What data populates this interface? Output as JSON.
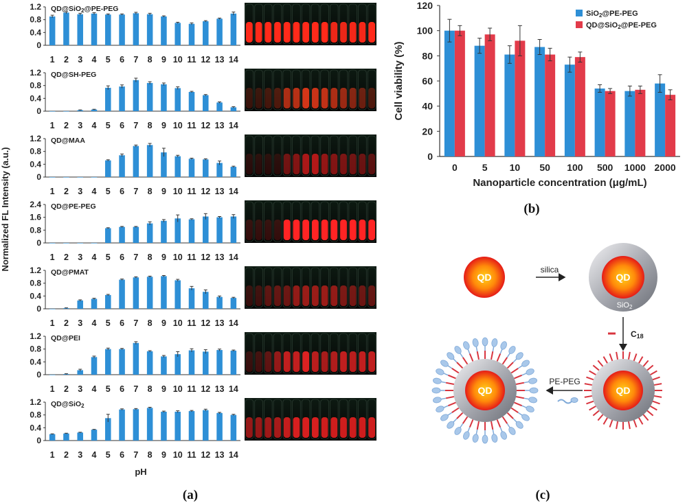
{
  "colors": {
    "blue": "#2e8fd6",
    "red": "#e23b4a",
    "qd_core": "#f5a40a",
    "silica": "#9ea1a8",
    "c18": "#d8343e",
    "peg": "#a9c8ea"
  },
  "panel_labels": {
    "a": "(a)",
    "b": "(b)",
    "c": "(c)"
  },
  "panel_a": {
    "ylabel": "Normalized FL Intensity (a.u.)",
    "xlabel": "pH",
    "categories": [
      "1",
      "2",
      "3",
      "4",
      "5",
      "6",
      "7",
      "8",
      "9",
      "10",
      "11",
      "12",
      "13",
      "14"
    ]
  },
  "chart_data": [
    {
      "type": "bar",
      "title_parts": [
        "QD@SiO",
        "2",
        "@PE-PEG"
      ],
      "ylim": [
        0,
        1.2
      ],
      "yticks": [
        "0",
        "0.4",
        "0.8",
        "1.2"
      ],
      "categories": [
        "1",
        "2",
        "3",
        "4",
        "5",
        "6",
        "7",
        "8",
        "9",
        "10",
        "11",
        "12",
        "13",
        "14"
      ],
      "values": [
        0.9,
        1.02,
        0.97,
        0.99,
        0.96,
        0.96,
        1.0,
        0.97,
        0.9,
        0.7,
        0.67,
        0.75,
        0.83,
        0.99
      ],
      "errors": [
        0.04,
        0.03,
        0.03,
        0.03,
        0.02,
        0.02,
        0.03,
        0.03,
        0.02,
        0.02,
        0.03,
        0.02,
        0.02,
        0.05
      ],
      "photo": {
        "tint": "#ff2a1a",
        "strength": [
          1,
          1,
          1,
          1,
          1,
          1,
          1,
          1,
          1,
          0.9,
          0.9,
          0.95,
          0.95,
          1
        ]
      }
    },
    {
      "type": "bar",
      "title_parts": [
        "QD@SH-PEG"
      ],
      "ylim": [
        0,
        1.2
      ],
      "yticks": [
        "0",
        "0.4",
        "0.8",
        "1.2"
      ],
      "categories": [
        "1",
        "2",
        "3",
        "4",
        "5",
        "6",
        "7",
        "8",
        "9",
        "10",
        "11",
        "12",
        "13",
        "14"
      ],
      "values": [
        0.0,
        0.0,
        0.03,
        0.05,
        0.73,
        0.77,
        0.97,
        0.88,
        0.84,
        0.72,
        0.6,
        0.5,
        0.27,
        0.12
      ],
      "errors": [
        0,
        0,
        0.01,
        0.01,
        0.06,
        0.05,
        0.06,
        0.04,
        0.04,
        0.04,
        0.02,
        0.02,
        0.02,
        0.02
      ],
      "photo": {
        "tint": "#e63a1a",
        "strength": [
          0.1,
          0.1,
          0.15,
          0.2,
          0.7,
          0.75,
          0.9,
          0.85,
          0.8,
          0.7,
          0.6,
          0.5,
          0.35,
          0.2
        ]
      }
    },
    {
      "type": "bar",
      "title_parts": [
        "QD@MAA"
      ],
      "ylim": [
        0,
        1.2
      ],
      "yticks": [
        "0",
        "0.4",
        "0.8",
        "1.2"
      ],
      "categories": [
        "1",
        "2",
        "3",
        "4",
        "5",
        "6",
        "7",
        "8",
        "9",
        "10",
        "11",
        "12",
        "13",
        "14"
      ],
      "values": [
        0.0,
        0.0,
        0.0,
        0.0,
        0.52,
        0.68,
        0.97,
        1.0,
        0.77,
        0.65,
        0.57,
        0.55,
        0.44,
        0.32
      ],
      "errors": [
        0,
        0,
        0,
        0,
        0.02,
        0.04,
        0.03,
        0.05,
        0.13,
        0.03,
        0.02,
        0.02,
        0.06,
        0.02
      ],
      "photo": {
        "tint": "#c21a1a",
        "strength": [
          0.05,
          0.05,
          0.05,
          0.05,
          0.5,
          0.6,
          0.85,
          0.9,
          0.7,
          0.6,
          0.55,
          0.5,
          0.45,
          0.35
        ]
      }
    },
    {
      "type": "bar",
      "title_parts": [
        "QD@PE-PEG"
      ],
      "ylim": [
        0,
        2.4
      ],
      "yticks": [
        "0",
        "0.8",
        "1.6",
        "2.4"
      ],
      "categories": [
        "1",
        "2",
        "3",
        "4",
        "5",
        "6",
        "7",
        "8",
        "9",
        "10",
        "11",
        "12",
        "13",
        "14"
      ],
      "values": [
        0.0,
        0.0,
        0.0,
        0.0,
        0.92,
        1.0,
        1.0,
        1.22,
        1.38,
        1.53,
        1.47,
        1.65,
        1.6,
        1.65
      ],
      "errors": [
        0,
        0,
        0,
        0,
        0.03,
        0.03,
        0.03,
        0.1,
        0.08,
        0.22,
        0.04,
        0.18,
        0.05,
        0.12
      ],
      "photo": {
        "tint": "#ff2424",
        "strength": [
          0.05,
          0.05,
          0.05,
          0.05,
          1,
          1,
          1,
          1,
          1,
          1,
          1,
          1,
          1,
          1
        ]
      }
    },
    {
      "type": "bar",
      "title_parts": [
        "QD@PMAT"
      ],
      "ylim": [
        0,
        1.2
      ],
      "yticks": [
        "0",
        "0.4",
        "0.8",
        "1.2"
      ],
      "categories": [
        "1",
        "2",
        "3",
        "4",
        "5",
        "6",
        "7",
        "8",
        "9",
        "10",
        "11",
        "12",
        "13",
        "14"
      ],
      "values": [
        0.0,
        0.02,
        0.26,
        0.31,
        0.43,
        0.91,
        0.98,
        1.0,
        1.02,
        0.89,
        0.64,
        0.53,
        0.37,
        0.34
      ],
      "errors": [
        0,
        0.01,
        0.02,
        0.02,
        0.02,
        0.02,
        0.02,
        0.02,
        0.02,
        0.03,
        0.06,
        0.06,
        0.03,
        0.02
      ],
      "photo": {
        "tint": "#b8201c",
        "strength": [
          0.15,
          0.2,
          0.4,
          0.45,
          0.5,
          0.75,
          0.8,
          0.8,
          0.8,
          0.75,
          0.6,
          0.55,
          0.5,
          0.45
        ]
      }
    },
    {
      "type": "bar",
      "title_parts": [
        "QD@PEI"
      ],
      "ylim": [
        0,
        1.2
      ],
      "yticks": [
        "0",
        "0.4",
        "0.8",
        "1.2"
      ],
      "categories": [
        "1",
        "2",
        "3",
        "4",
        "5",
        "6",
        "7",
        "8",
        "9",
        "10",
        "11",
        "12",
        "13",
        "14"
      ],
      "values": [
        0.0,
        0.02,
        0.14,
        0.55,
        0.8,
        0.8,
        0.99,
        0.73,
        0.57,
        0.64,
        0.76,
        0.72,
        0.77,
        0.75
      ],
      "errors": [
        0,
        0.01,
        0.03,
        0.03,
        0.03,
        0.02,
        0.04,
        0.02,
        0.03,
        0.08,
        0.05,
        0.06,
        0.03,
        0.02
      ],
      "photo": {
        "tint": "#dd2222",
        "strength": [
          0.1,
          0.15,
          0.3,
          0.6,
          0.85,
          0.85,
          1,
          0.8,
          0.7,
          0.75,
          0.85,
          0.8,
          0.85,
          0.85
        ]
      }
    },
    {
      "type": "bar",
      "title_parts": [
        "QD@SiO",
        "2",
        ""
      ],
      "ylim": [
        0,
        1.2
      ],
      "yticks": [
        "0",
        "0.4",
        "0.8",
        "1.2"
      ],
      "categories": [
        "1",
        "2",
        "3",
        "4",
        "5",
        "6",
        "7",
        "8",
        "9",
        "10",
        "11",
        "12",
        "13",
        "14"
      ],
      "values": [
        0.2,
        0.22,
        0.25,
        0.34,
        0.7,
        0.97,
        0.98,
        1.02,
        0.9,
        0.9,
        0.92,
        0.95,
        0.86,
        0.8
      ],
      "errors": [
        0.01,
        0.01,
        0.01,
        0.01,
        0.12,
        0.02,
        0.02,
        0.02,
        0.02,
        0.03,
        0.02,
        0.03,
        0.02,
        0.02
      ],
      "photo": {
        "tint": "#e02020",
        "strength": [
          0.6,
          0.6,
          0.65,
          0.7,
          0.85,
          0.95,
          0.95,
          0.95,
          0.9,
          0.9,
          0.9,
          0.9,
          0.9,
          0.9
        ]
      }
    },
    {
      "type": "bar",
      "ylabel": "Cell  viability (%)",
      "xlabel": "Nanoparticle concentration (μg/mL)",
      "ylim": [
        0,
        120
      ],
      "yticks": [
        "0",
        "20",
        "40",
        "60",
        "80",
        "100",
        "120"
      ],
      "categories": [
        "0",
        "5",
        "10",
        "50",
        "100",
        "500",
        "1000",
        "2000"
      ],
      "legend_position": "top-right",
      "series": [
        {
          "name_parts": [
            "SiO",
            "2",
            "@PE-PEG"
          ],
          "color": "#2e8fd6",
          "values": [
            100,
            88,
            81,
            87,
            73,
            54,
            52,
            58
          ],
          "errors": [
            9,
            6,
            7,
            6,
            6,
            3,
            4,
            7
          ]
        },
        {
          "name_parts": [
            "QD@SiO",
            "2",
            "@PE-PEG"
          ],
          "color": "#e23b4a",
          "values": [
            100,
            97,
            92,
            81,
            79,
            52,
            53,
            49
          ],
          "errors": [
            4,
            5,
            12,
            5,
            4,
            2,
            3,
            4
          ]
        }
      ]
    }
  ],
  "panel_c": {
    "core_label": "QD",
    "step1": "silica",
    "shell_label_parts": [
      "SiO",
      "2"
    ],
    "step2_parts": [
      "C",
      "18"
    ],
    "step3": "PE-PEG"
  }
}
